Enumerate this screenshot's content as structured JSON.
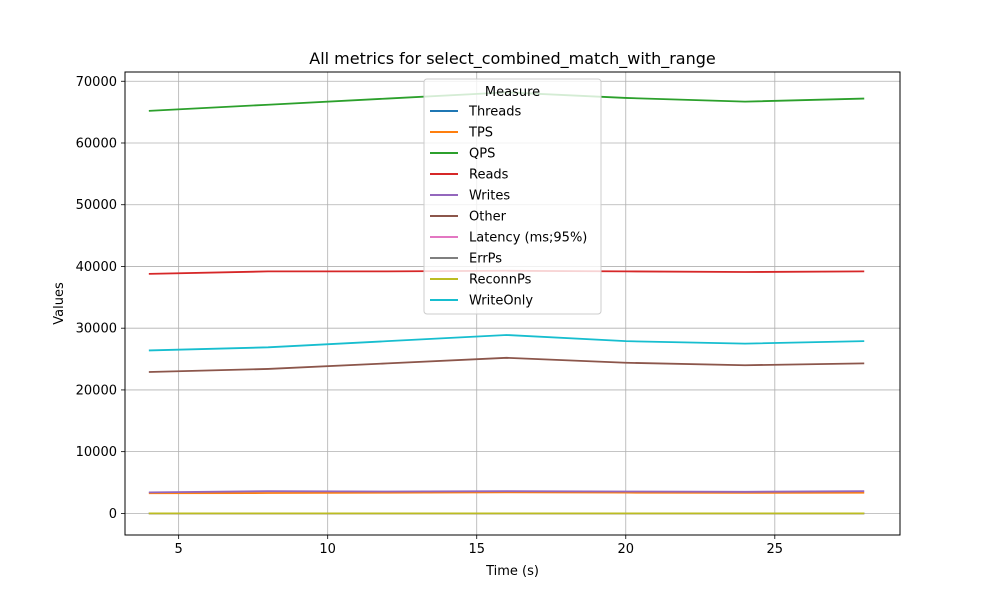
{
  "chart_data": {
    "type": "line",
    "title": "All metrics for select_combined_match_with_range",
    "xlabel": "Time (s)",
    "ylabel": "Values",
    "xlim": [
      3.2,
      29.2
    ],
    "ylim": [
      -3500,
      71500
    ],
    "xticks": [
      5,
      10,
      15,
      20,
      25
    ],
    "yticks": [
      0,
      10000,
      20000,
      30000,
      40000,
      50000,
      60000,
      70000
    ],
    "grid": true,
    "legend_title": "Measure",
    "legend_position": "top-center",
    "x": [
      4,
      8,
      12,
      16,
      20,
      24,
      28
    ],
    "series": [
      {
        "name": "Threads",
        "color": "#1f77b4",
        "values": [
          8,
          8,
          8,
          8,
          8,
          8,
          8
        ]
      },
      {
        "name": "TPS",
        "color": "#ff7f0e",
        "values": [
          3260,
          3300,
          3340,
          3400,
          3360,
          3330,
          3350
        ]
      },
      {
        "name": "QPS",
        "color": "#2ca02c",
        "values": [
          65200,
          66200,
          67200,
          68200,
          67300,
          66700,
          67200
        ]
      },
      {
        "name": "Reads",
        "color": "#d62728",
        "values": [
          38800,
          39200,
          39200,
          39300,
          39200,
          39100,
          39200
        ]
      },
      {
        "name": "Writes",
        "color": "#9467bd",
        "values": [
          3400,
          3600,
          3550,
          3600,
          3550,
          3500,
          3600
        ]
      },
      {
        "name": "Other",
        "color": "#8c564b",
        "values": [
          22900,
          23400,
          24300,
          25200,
          24400,
          24000,
          24300
        ]
      },
      {
        "name": "Latency (ms;95%)",
        "color": "#e377c2",
        "values": [
          3,
          3,
          3,
          3,
          3,
          3,
          3
        ]
      },
      {
        "name": "ErrPs",
        "color": "#7f7f7f",
        "values": [
          0,
          0,
          0,
          0,
          0,
          0,
          0
        ]
      },
      {
        "name": "ReconnPs",
        "color": "#bcbd22",
        "values": [
          0,
          0,
          0,
          0,
          0,
          0,
          0
        ]
      },
      {
        "name": "WriteOnly",
        "color": "#17becf",
        "values": [
          26400,
          26900,
          27900,
          28900,
          27900,
          27500,
          27900
        ]
      }
    ]
  }
}
